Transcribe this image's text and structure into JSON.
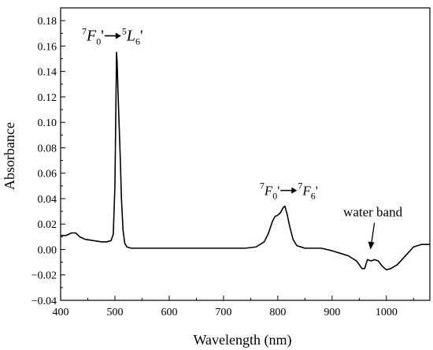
{
  "chart_data": {
    "type": "line",
    "xlabel": "Wavelength (nm)",
    "ylabel": "Absorbance",
    "xlim": [
      400,
      1080
    ],
    "ylim": [
      -0.04,
      0.19
    ],
    "x_ticks": [
      400,
      500,
      600,
      700,
      800,
      900,
      1000
    ],
    "y_ticks": [
      -0.04,
      -0.02,
      0.0,
      0.02,
      0.04,
      0.06,
      0.08,
      0.1,
      0.12,
      0.14,
      0.16,
      0.18
    ],
    "x_tick_labels": [
      "400",
      "500",
      "600",
      "700",
      "800",
      "900",
      "1000"
    ],
    "y_tick_labels": [
      "−0.04",
      "−0.02",
      "0.00",
      "0.02",
      "0.04",
      "0.06",
      "0.08",
      "0.10",
      "0.12",
      "0.14",
      "0.16",
      "0.18"
    ],
    "grid": false,
    "series": [
      {
        "color": "#000000",
        "points": [
          [
            400,
            0.011
          ],
          [
            410,
            0.011
          ],
          [
            420,
            0.013
          ],
          [
            428,
            0.013
          ],
          [
            435,
            0.01
          ],
          [
            445,
            0.008
          ],
          [
            460,
            0.007
          ],
          [
            475,
            0.006
          ],
          [
            485,
            0.006
          ],
          [
            493,
            0.007
          ],
          [
            497,
            0.012
          ],
          [
            500,
            0.05
          ],
          [
            502,
            0.12
          ],
          [
            503,
            0.155
          ],
          [
            504,
            0.148
          ],
          [
            506,
            0.12
          ],
          [
            508,
            0.095
          ],
          [
            510,
            0.07
          ],
          [
            512,
            0.04
          ],
          [
            515,
            0.015
          ],
          [
            518,
            0.005
          ],
          [
            522,
            0.002
          ],
          [
            530,
            0.001
          ],
          [
            550,
            0.001
          ],
          [
            600,
            0.001
          ],
          [
            650,
            0.001
          ],
          [
            700,
            0.001
          ],
          [
            740,
            0.001
          ],
          [
            760,
            0.002
          ],
          [
            775,
            0.006
          ],
          [
            783,
            0.013
          ],
          [
            790,
            0.022
          ],
          [
            795,
            0.026
          ],
          [
            800,
            0.027
          ],
          [
            805,
            0.029
          ],
          [
            810,
            0.033
          ],
          [
            813,
            0.034
          ],
          [
            817,
            0.028
          ],
          [
            822,
            0.018
          ],
          [
            828,
            0.008
          ],
          [
            835,
            0.003
          ],
          [
            850,
            0.001
          ],
          [
            880,
            0.001
          ],
          [
            900,
            -0.001
          ],
          [
            915,
            -0.003
          ],
          [
            930,
            -0.005
          ],
          [
            945,
            -0.009
          ],
          [
            955,
            -0.015
          ],
          [
            960,
            -0.015
          ],
          [
            965,
            -0.008
          ],
          [
            972,
            -0.009
          ],
          [
            978,
            -0.008
          ],
          [
            985,
            -0.009
          ],
          [
            992,
            -0.013
          ],
          [
            1000,
            -0.016
          ],
          [
            1008,
            -0.015
          ],
          [
            1020,
            -0.012
          ],
          [
            1035,
            -0.005
          ],
          [
            1050,
            0.002
          ],
          [
            1065,
            0.004
          ],
          [
            1080,
            0.004
          ]
        ]
      }
    ],
    "annotations": {
      "peak1": {
        "x": 503,
        "y": 0.155,
        "label_from": "F",
        "label_from_sup": "7",
        "label_from_sub": "0",
        "label_to": "L",
        "label_to_sup": "5",
        "label_to_sub": "6",
        "prime": "'"
      },
      "peak2": {
        "x": 813,
        "y": 0.034,
        "label_from": "F",
        "label_from_sup": "7",
        "label_from_sub": "0",
        "label_to": "F",
        "label_to_sup": "7",
        "label_to_sub": "6",
        "prime": "'"
      },
      "water": {
        "x": 975,
        "y": -0.005,
        "label": "water band"
      }
    }
  }
}
